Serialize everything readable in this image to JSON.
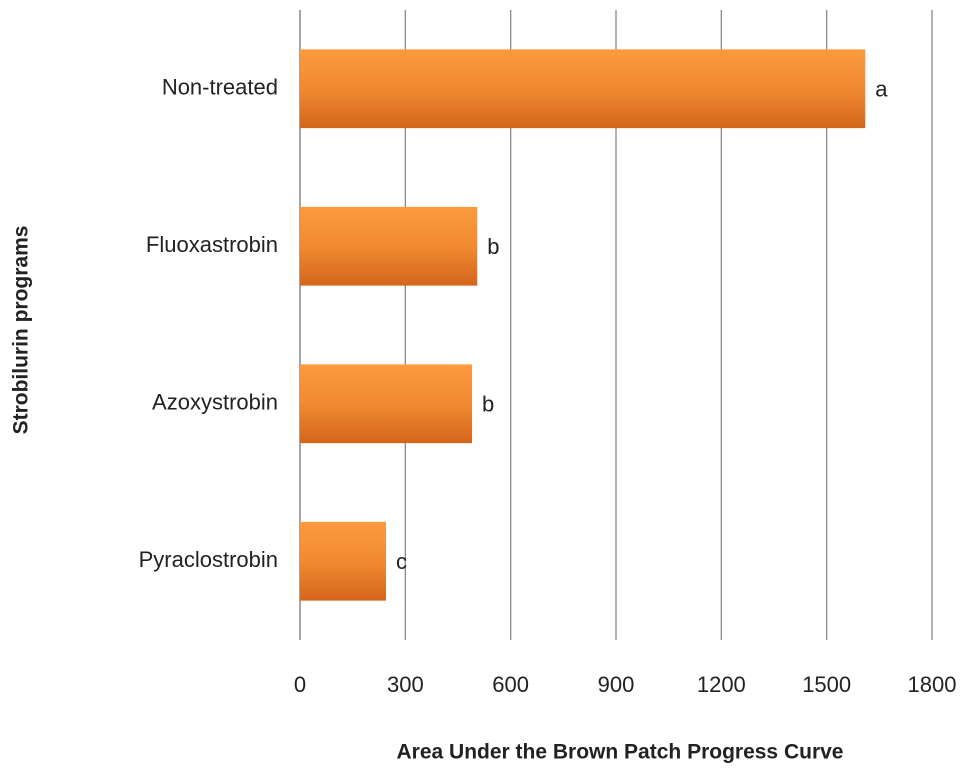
{
  "chart_data": {
    "type": "bar",
    "orientation": "horizontal",
    "xlabel": "Area Under the Brown Patch Progress  Curve",
    "ylabel": "Strobilurin programs",
    "categories": [
      "Non-treated",
      "Fluoxastrobin",
      "Azoxystrobin",
      "Pyraclostrobin"
    ],
    "values": [
      1610,
      505,
      490,
      245
    ],
    "annotations": [
      "a",
      "b",
      "b",
      "c"
    ],
    "color": "#f08a30",
    "xlim": [
      0,
      1800
    ],
    "xticks": [
      0,
      300,
      600,
      900,
      1200,
      1500,
      1800
    ],
    "grid": true
  }
}
